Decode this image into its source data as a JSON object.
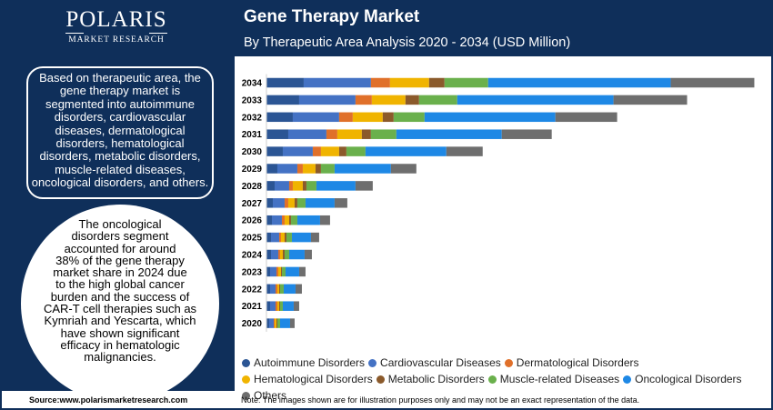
{
  "header": {
    "logo_word": "POLARIS",
    "logo_sub": "MARKET RESEARCH",
    "title": "Gene Therapy Market",
    "subtitle": "By Therapeutic Area Analysis 2020 - 2034 (USD Million)"
  },
  "sidebar": {
    "summary_text": "Based on therapeutic area, the gene therapy market is segmented into autoimmune disorders, cardiovascular diseases, dermatological disorders, hematological disorders, metabolic disorders, muscle-related diseases, oncological disorders, and others.",
    "highlight_text": "The oncological\ndisorders segment\naccounted for around\n38% of the gene therapy\nmarket share in 2024 due\nto the high global cancer\nburden and the success of\nCAR-T cell therapies such as\nKymriah and Yescarta, which\nhave shown significant\nefficacy in hematologic\nmalignancies."
  },
  "footer": {
    "source": "Source:www.polarismarketresearch.com",
    "note": "Note: The images shown are for illustration purposes only and may not be an exact representation of the data."
  },
  "chart_data": {
    "type": "bar",
    "orientation": "horizontal",
    "stacked": true,
    "title": "Gene Therapy Market",
    "subtitle": "By Therapeutic Area Analysis 2020 - 2034 (USD Million)",
    "categories": [
      "2034",
      "2033",
      "2032",
      "2031",
      "2030",
      "2029",
      "2028",
      "2027",
      "2026",
      "2025",
      "2024",
      "2023",
      "2022",
      "2021",
      "2020"
    ],
    "series": [
      {
        "name": "Autoimmune Disorders",
        "color": "#2b5594",
        "values": [
          41,
          36,
          29,
          24,
          18,
          12,
          9,
          7,
          6,
          5,
          5,
          4,
          4,
          4,
          3
        ]
      },
      {
        "name": "Cardiovascular Diseases",
        "color": "#4472c4",
        "values": [
          74,
          62,
          51,
          42,
          33,
          22,
          16,
          13,
          11,
          9,
          8,
          7,
          6,
          6,
          5
        ]
      },
      {
        "name": "Dermatological Disorders",
        "color": "#e0702a",
        "values": [
          21,
          18,
          15,
          12,
          9,
          6,
          4,
          4,
          3,
          2,
          2,
          2,
          2,
          2,
          1
        ]
      },
      {
        "name": "Hematological Disorders",
        "color": "#f0b400",
        "values": [
          43,
          37,
          33,
          27,
          20,
          14,
          11,
          7,
          5,
          4,
          3,
          3,
          2,
          2,
          2
        ]
      },
      {
        "name": "Metabolic Disorders",
        "color": "#8b5a2b",
        "values": [
          17,
          15,
          12,
          10,
          8,
          6,
          4,
          3,
          2,
          2,
          2,
          1,
          1,
          1,
          1
        ]
      },
      {
        "name": "Muscle-related Diseases",
        "color": "#6ab04c",
        "values": [
          48,
          42,
          34,
          28,
          21,
          15,
          11,
          9,
          7,
          6,
          5,
          4,
          4,
          3,
          3
        ]
      },
      {
        "name": "Oncological Disorders",
        "color": "#1e88e5",
        "values": [
          201,
          172,
          144,
          116,
          89,
          62,
          43,
          32,
          25,
          21,
          17,
          15,
          13,
          12,
          11
        ]
      },
      {
        "name": "Others",
        "color": "#6e6e6e",
        "values": [
          92,
          81,
          68,
          55,
          40,
          28,
          19,
          14,
          11,
          9,
          8,
          7,
          7,
          6,
          5
        ]
      }
    ],
    "legend_position": "bottom",
    "grid": false
  }
}
